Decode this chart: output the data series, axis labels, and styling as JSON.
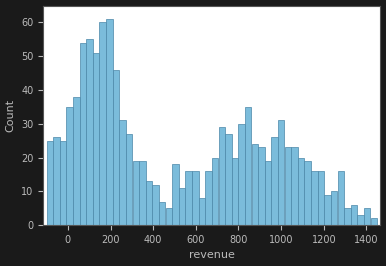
{
  "bar_heights": [
    25,
    26,
    25,
    35,
    38,
    54,
    55,
    51,
    60,
    61,
    46,
    31,
    27,
    19,
    19,
    13,
    12,
    7,
    5,
    18,
    11,
    16,
    16,
    8,
    16,
    20,
    29,
    27,
    20,
    30,
    35,
    24,
    23,
    19,
    26,
    31,
    23,
    23,
    20,
    19,
    16,
    16,
    9,
    10,
    16,
    5,
    6,
    3,
    5,
    2
  ],
  "x_min": -100,
  "x_max": 1450,
  "bins": 50,
  "xlabel": "revenue",
  "ylabel": "Count",
  "bar_color": "#7bbcdb",
  "bar_edge_color": "#4a86a8",
  "background_color": "#1a1a1a",
  "axes_bg_color": "#ffffff",
  "tick_color": "#bbbbbb",
  "label_color": "#bbbbbb",
  "spine_color": "#555555",
  "xlabel_fontsize": 8,
  "ylabel_fontsize": 8,
  "tick_fontsize": 7,
  "yticks": [
    0,
    10,
    20,
    30,
    40,
    50,
    60
  ],
  "xticks": [
    0,
    200,
    400,
    600,
    800,
    1000,
    1200,
    1400
  ]
}
